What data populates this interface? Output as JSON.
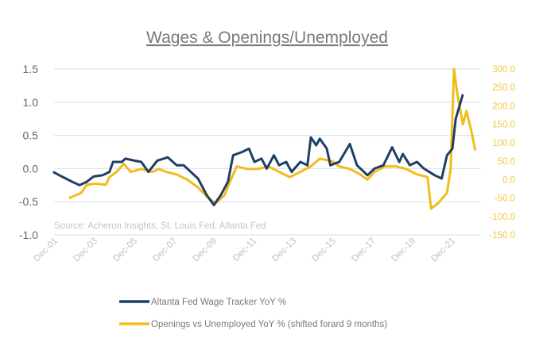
{
  "chart_data": {
    "type": "line",
    "title": "Wages & Openings/Unemployed",
    "source_note": "Source: Acheron Insights, St. Louis Fed, Atlanta Fed",
    "x_ticks": [
      "Dec-01",
      "Dec-03",
      "Dec-05",
      "Dec-07",
      "Dec-09",
      "Dec-11",
      "Dec-13",
      "Dec-15",
      "Dec-17",
      "Dec-19",
      "Dec-21"
    ],
    "y_left": {
      "ticks": [
        "1.5",
        "1.0",
        "0.5",
        "0.0",
        "-0.5",
        "-1.0"
      ],
      "range": [
        -1.0,
        1.5
      ]
    },
    "y_right": {
      "ticks": [
        "300.0",
        "250.0",
        "200.0",
        "150.0",
        "100.0",
        "50.0",
        "0.0",
        "-50.0",
        "-100.0",
        "-150.0"
      ],
      "range": [
        -150,
        300
      ]
    },
    "grid": true,
    "legend_position": "bottom",
    "colors": {
      "wage": "#1f3f66",
      "openings": "#f2bc1b",
      "left_axis": "#5a6b7a",
      "right_axis": "#f2c744",
      "grid": "#dde6ee"
    },
    "series": [
      {
        "name": "Altanta Fed Wage Tracker YoY %",
        "axis": "left",
        "x": [
          2001.67,
          2002.11,
          2002.64,
          2003.0,
          2003.36,
          2003.71,
          2004.16,
          2004.51,
          2004.69,
          2005.13,
          2005.31,
          2005.76,
          2006.11,
          2006.47,
          2006.91,
          2007.44,
          2007.89,
          2008.24,
          2008.6,
          2008.96,
          2009.4,
          2009.76,
          2010.11,
          2010.47,
          2010.73,
          2011.18,
          2011.53,
          2011.8,
          2012.16,
          2012.42,
          2012.78,
          2013.04,
          2013.4,
          2013.67,
          2014.11,
          2014.47,
          2014.64,
          2014.91,
          2015.09,
          2015.44,
          2015.62,
          2016.07,
          2016.6,
          2016.96,
          2017.49,
          2017.84,
          2018.29,
          2018.73,
          2019.09,
          2019.27,
          2019.62,
          2019.98,
          2020.33,
          2020.87,
          2021.22,
          2021.49,
          2021.76,
          2021.93,
          2022.29
        ],
        "values": [
          -0.05,
          -0.12,
          -0.2,
          -0.25,
          -0.2,
          -0.12,
          -0.1,
          -0.05,
          0.1,
          0.1,
          0.15,
          0.12,
          0.1,
          -0.05,
          0.12,
          0.17,
          0.05,
          0.05,
          -0.05,
          -0.15,
          -0.4,
          -0.55,
          -0.4,
          -0.2,
          0.2,
          0.25,
          0.3,
          0.1,
          0.15,
          0.0,
          0.2,
          0.05,
          0.1,
          -0.05,
          0.1,
          0.05,
          0.47,
          0.35,
          0.45,
          0.3,
          0.05,
          0.1,
          0.37,
          0.05,
          -0.1,
          0.0,
          0.05,
          0.32,
          0.1,
          0.22,
          0.05,
          0.1,
          0.0,
          -0.1,
          -0.15,
          0.2,
          0.3,
          0.75,
          1.12
        ]
      },
      {
        "name": "Openings vs Unemployed YoY % (shifted forard 9 months)",
        "axis": "right",
        "x": [
          2002.47,
          2003.09,
          2003.36,
          2003.8,
          2004.33,
          2004.51,
          2004.87,
          2005.22,
          2005.58,
          2006.11,
          2006.64,
          2007.0,
          2007.36,
          2007.89,
          2008.42,
          2008.96,
          2009.49,
          2009.84,
          2010.29,
          2010.56,
          2010.91,
          2011.44,
          2011.98,
          2012.51,
          2013.04,
          2013.58,
          2014.11,
          2014.64,
          2015.09,
          2015.71,
          2016.07,
          2016.6,
          2017.13,
          2017.49,
          2017.84,
          2018.38,
          2018.91,
          2019.44,
          2019.98,
          2020.51,
          2020.69,
          2021.04,
          2021.49,
          2021.67,
          2021.84,
          2022.02,
          2022.29,
          2022.47,
          2022.73,
          2022.91
        ],
        "values": [
          -50,
          -36,
          -14,
          -11,
          -14,
          7,
          21,
          43,
          21,
          29,
          21,
          29,
          21,
          14,
          0,
          -21,
          -50,
          -64,
          -43,
          -7,
          36,
          29,
          29,
          36,
          21,
          7,
          21,
          36,
          57,
          50,
          36,
          29,
          14,
          0,
          21,
          36,
          36,
          29,
          14,
          7,
          -79,
          -64,
          -36,
          29,
          300,
          229,
          150,
          186,
          129,
          79
        ]
      }
    ]
  }
}
